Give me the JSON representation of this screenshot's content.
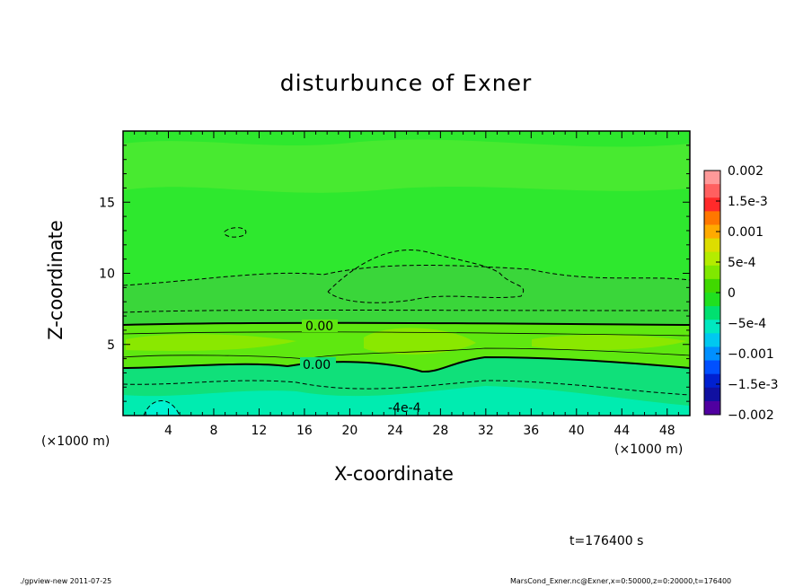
{
  "chart_data": {
    "type": "heatmap",
    "title": "disturbunce of Exner",
    "xlabel": "X-coordinate",
    "ylabel": "Z-coordinate",
    "x_unit": "(×1000 m)",
    "xlim": [
      0,
      50
    ],
    "ylim": [
      0,
      20
    ],
    "x_ticks": [
      "4",
      "8",
      "12",
      "16",
      "20",
      "24",
      "28",
      "32",
      "36",
      "40",
      "44",
      "48"
    ],
    "y_ticks": [
      "5",
      "10",
      "15"
    ],
    "colorbar": {
      "labels": [
        "0.002",
        "1.5e-3",
        "0.001",
        "5e-4",
        "0",
        "−5e-4",
        "−0.001",
        "−1.5e-3",
        "−0.002"
      ],
      "colors": [
        "#ff9999",
        "#ff6060",
        "#ff2a2a",
        "#ff7700",
        "#ffaa00",
        "#dddd00",
        "#b4ec00",
        "#80e800",
        "#40d800",
        "#20e020",
        "#00e070",
        "#00e8c0",
        "#00c8f0",
        "#0090ff",
        "#0050ff",
        "#0020d0",
        "#1010a0",
        "#5000a0"
      ]
    },
    "contour_labels": [
      "0.00",
      "0.00",
      "-4e-4"
    ],
    "colors": {
      "background": "#2ee82e",
      "mid_band": "#3ad63a",
      "bright_band": "#7fe800",
      "cool_band": "#00e08a",
      "cyan": "#00f0cc"
    }
  },
  "annotation": {
    "time": "t=176400 s"
  },
  "footer": {
    "left": "./gpview-new   2011-07-25",
    "right": "MarsCond_Exner.nc@Exner,x=0:50000,z=0:20000,t=176400"
  }
}
